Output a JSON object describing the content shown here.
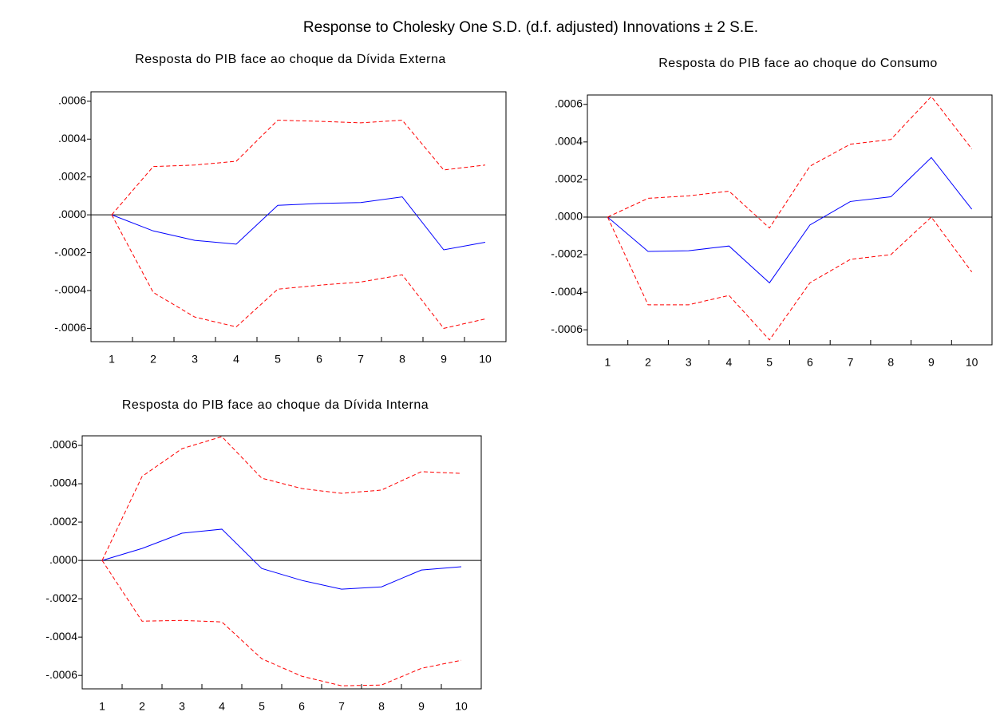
{
  "title": "Response to Cholesky One S.D. (d.f. adjusted) Innovations ± 2 S.E.",
  "chart_data": [
    {
      "type": "line",
      "title": "Resposta do PIB face ao choque da Dívida Externa",
      "categories": [
        "1",
        "2",
        "3",
        "4",
        "5",
        "6",
        "7",
        "8",
        "9",
        "10"
      ],
      "series": [
        {
          "color": "#0000ff",
          "dashed": false,
          "values": [
            0,
            -8.5e-05,
            -0.000135,
            -0.000155,
            5e-05,
            6e-05,
            6.5e-05,
            9.5e-05,
            -0.000185,
            -0.000145
          ]
        },
        {
          "color": "#ff0000",
          "dashed": true,
          "values": [
            0,
            0.000255,
            0.000263,
            0.000283,
            0.0005,
            0.000494,
            0.000486,
            0.0005,
            0.000237,
            0.000263
          ]
        },
        {
          "color": "#ff0000",
          "dashed": true,
          "values": [
            0,
            -0.00041,
            -0.00054,
            -0.000592,
            -0.000393,
            -0.000372,
            -0.000355,
            -0.000317,
            -0.0006,
            -0.00055
          ]
        }
      ],
      "ylim": [
        -0.00067,
        0.00065
      ],
      "yticks": [
        {
          "value": -0.0006,
          "label": "-.0006"
        },
        {
          "value": -0.0004,
          "label": "-.0004"
        },
        {
          "value": -0.0002,
          "label": "-.0002"
        },
        {
          "value": 0,
          "label": ".0000"
        },
        {
          "value": 0.0002,
          "label": ".0002"
        },
        {
          "value": 0.0004,
          "label": ".0004"
        },
        {
          "value": 0.0006,
          "label": ".0006"
        }
      ]
    },
    {
      "type": "line",
      "title": "Resposta do PIB face ao choque do Consumo",
      "categories": [
        "1",
        "2",
        "3",
        "4",
        "5",
        "6",
        "7",
        "8",
        "9",
        "10"
      ],
      "series": [
        {
          "color": "#0000ff",
          "dashed": false,
          "values": [
            0,
            -0.000183,
            -0.000179,
            -0.000154,
            -0.00035,
            -4.2e-05,
            8.3e-05,
            0.000108,
            0.000317,
            4.2e-05
          ]
        },
        {
          "color": "#ff0000",
          "dashed": true,
          "values": [
            0,
            0.0001,
            0.000113,
            0.000138,
            -5.8e-05,
            0.000271,
            0.000388,
            0.000413,
            0.000642,
            0.000363
          ]
        },
        {
          "color": "#ff0000",
          "dashed": true,
          "values": [
            0,
            -0.000467,
            -0.000467,
            -0.000417,
            -0.000654,
            -0.00035,
            -0.000225,
            -0.0002,
            0,
            -0.000292
          ]
        }
      ],
      "ylim": [
        -0.00068,
        0.00065
      ],
      "yticks": [
        {
          "value": -0.0006,
          "label": "-.0006"
        },
        {
          "value": -0.0004,
          "label": "-.0004"
        },
        {
          "value": -0.0002,
          "label": "-.0002"
        },
        {
          "value": 0,
          "label": ".0000"
        },
        {
          "value": 0.0002,
          "label": ".0002"
        },
        {
          "value": 0.0004,
          "label": ".0004"
        },
        {
          "value": 0.0006,
          "label": ".0006"
        }
      ]
    },
    {
      "type": "line",
      "title": "Resposta do PIB face ao choque da Dívida Interna",
      "categories": [
        "1",
        "2",
        "3",
        "4",
        "5",
        "6",
        "7",
        "8",
        "9",
        "10"
      ],
      "series": [
        {
          "color": "#0000ff",
          "dashed": false,
          "values": [
            0,
            6.25e-05,
            0.000142,
            0.000163,
            -4.2e-05,
            -0.000104,
            -0.00015,
            -0.000138,
            -5e-05,
            -3.3e-05
          ]
        },
        {
          "color": "#ff0000",
          "dashed": true,
          "values": [
            0,
            0.000438,
            0.000583,
            0.000646,
            0.000429,
            0.000375,
            0.00035,
            0.000367,
            0.000463,
            0.000454
          ]
        },
        {
          "color": "#ff0000",
          "dashed": true,
          "values": [
            0,
            -0.000317,
            -0.000313,
            -0.000321,
            -0.000513,
            -0.000604,
            -0.000654,
            -0.00065,
            -0.000563,
            -0.000521
          ]
        }
      ],
      "ylim": [
        -0.00067,
        0.00065
      ],
      "yticks": [
        {
          "value": -0.0006,
          "label": "-.0006"
        },
        {
          "value": -0.0004,
          "label": "-.0004"
        },
        {
          "value": -0.0002,
          "label": "-.0002"
        },
        {
          "value": 0,
          "label": ".0000"
        },
        {
          "value": 0.0002,
          "label": ".0002"
        },
        {
          "value": 0.0004,
          "label": ".0004"
        },
        {
          "value": 0.0006,
          "label": ".0006"
        }
      ]
    }
  ]
}
